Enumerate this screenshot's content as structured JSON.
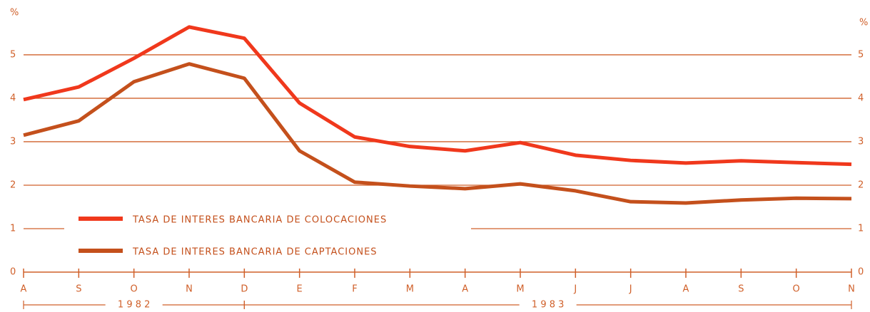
{
  "chart_data": {
    "type": "line",
    "y_unit_label": "%",
    "categories": [
      "A",
      "S",
      "O",
      "N",
      "D",
      "E",
      "F",
      "M",
      "A",
      "M",
      "J",
      "J",
      "A",
      "S",
      "O",
      "N"
    ],
    "years": [
      {
        "label": "1 9 8 2",
        "from": 0,
        "to": 4
      },
      {
        "label": "1 9 8 3",
        "from": 4,
        "to": 15
      }
    ],
    "series": [
      {
        "name": "TASA DE INTERES BANCARIA DE COLOCACIONES",
        "color": "#f0381c",
        "values": [
          3.97,
          4.26,
          4.92,
          5.64,
          5.38,
          3.89,
          3.11,
          2.89,
          2.79,
          2.98,
          2.69,
          2.57,
          2.51,
          2.56,
          2.52,
          2.48
        ]
      },
      {
        "name": "TASA DE INTERES BANCARIA DE CAPTACIONES",
        "color": "#c4501c",
        "values": [
          3.15,
          3.48,
          4.38,
          4.79,
          4.46,
          2.79,
          2.07,
          1.98,
          1.92,
          2.03,
          1.87,
          1.62,
          1.59,
          1.66,
          1.7,
          1.69
        ]
      }
    ],
    "ylim": [
      0,
      5.9
    ],
    "yticks": [
      0,
      1,
      2,
      3,
      4,
      5
    ],
    "grid": true,
    "legend": "left"
  }
}
